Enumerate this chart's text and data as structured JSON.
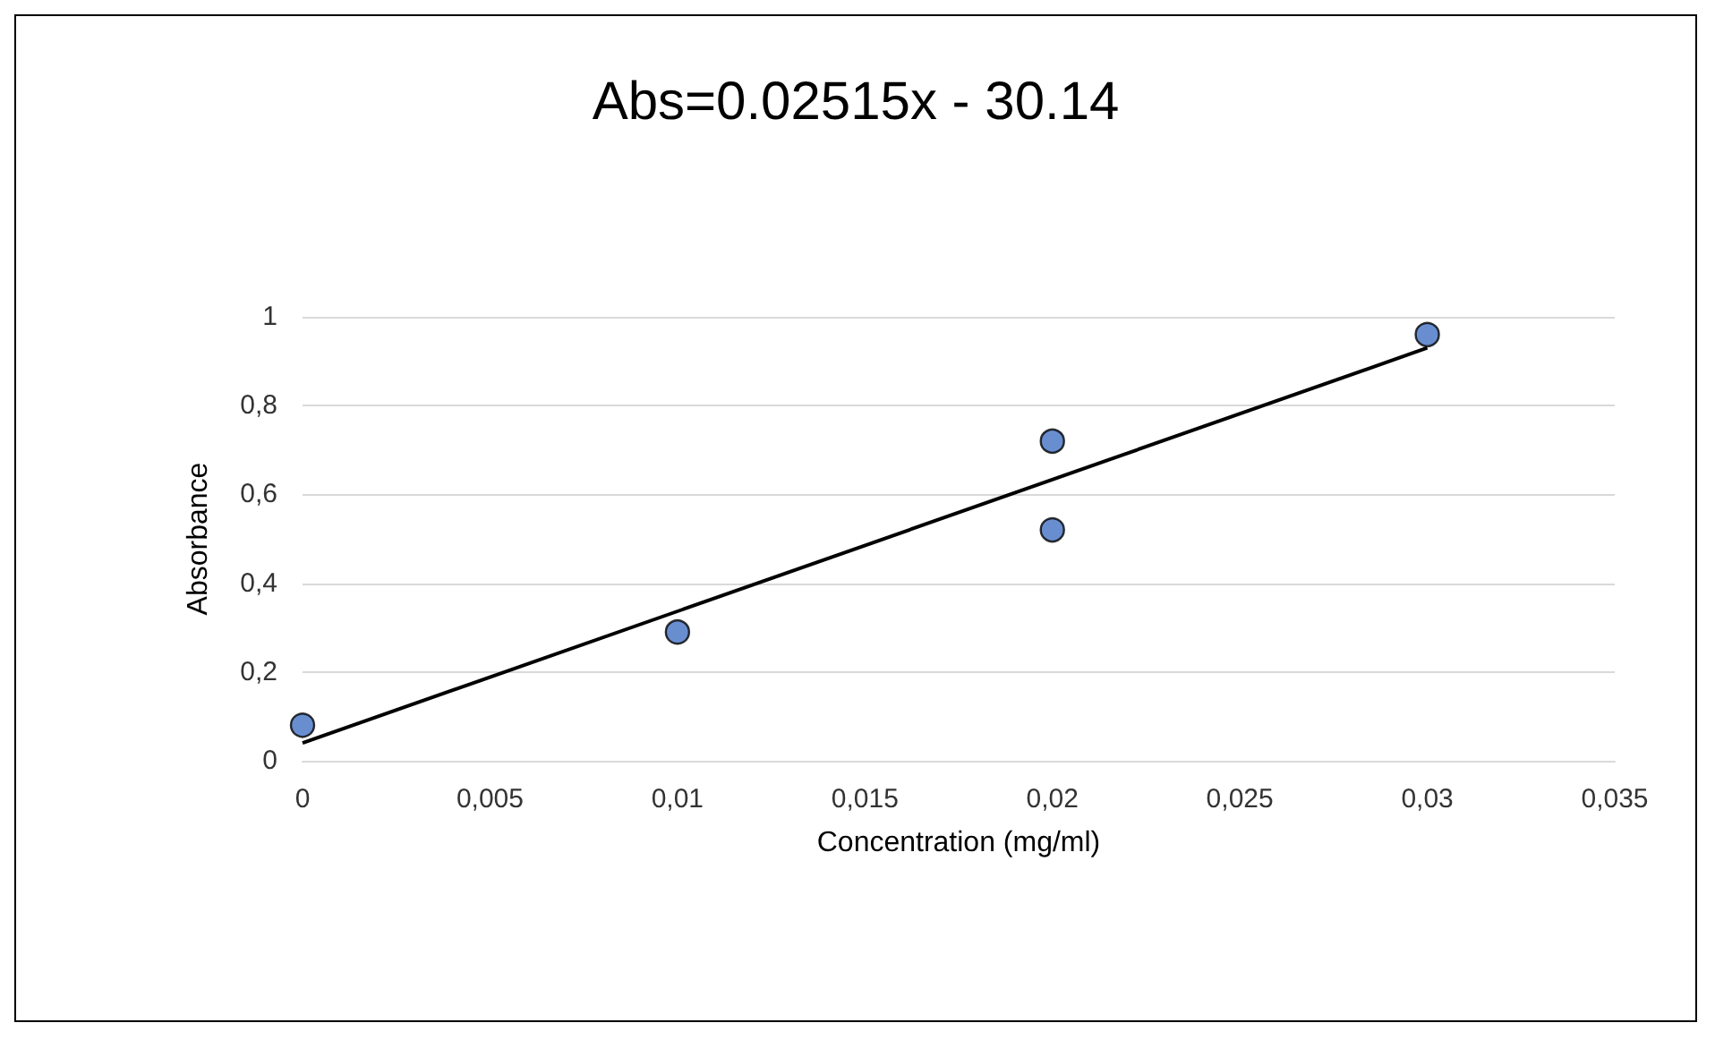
{
  "chart_data": {
    "type": "scatter",
    "title": "Abs=0.02515x - 30.14",
    "xlabel": "Concentration (mg/ml)",
    "ylabel": "Absorbance",
    "xlim": [
      0,
      0.035
    ],
    "xticks": [
      0,
      {
        "value": 0.005,
        "label": "0,005"
      },
      {
        "value": 0.01,
        "label": "0,01"
      },
      {
        "value": 0.015,
        "label": "0,015"
      },
      {
        "value": 0.02,
        "label": "0,02"
      },
      {
        "value": 0.025,
        "label": "0,025"
      },
      {
        "value": 0.03,
        "label": "0,03"
      },
      {
        "value": 0.035,
        "label": "0,035"
      }
    ],
    "ylim": [
      0,
      1
    ],
    "yticks": [
      0,
      {
        "value": 0.2,
        "label": "0,2"
      },
      {
        "value": 0.4,
        "label": "0,4"
      },
      {
        "value": 0.6,
        "label": "0,6"
      },
      {
        "value": 0.8,
        "label": "0,8"
      },
      1
    ],
    "grid": "y",
    "marker": "circle",
    "series": [
      {
        "type": "scatter",
        "color": "#4472c4",
        "x": [
          0,
          0.01,
          0.02,
          0.02,
          0.03
        ],
        "values": [
          0.08,
          0.29,
          0.72,
          0.52,
          0.96
        ]
      },
      {
        "type": "line",
        "color": "#000000",
        "x": [
          0,
          0.03
        ],
        "values": [
          0.04,
          0.93
        ],
        "marker": "none"
      }
    ]
  }
}
